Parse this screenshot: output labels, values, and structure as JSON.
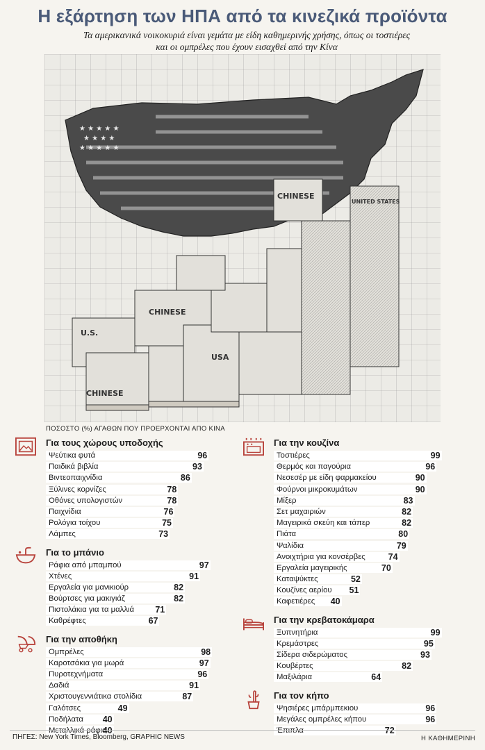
{
  "header": {
    "title": "Η εξάρτηση των ΗΠΑ από τα κινεζικά προϊόντα",
    "subtitle_line1": "Τα αμερικανικά νοικοκυριά είναι γεμάτα με είδη καθημερινής χρήσης, όπως οι τοστιέρες",
    "subtitle_line2": "και οι ομπρέλες που έχουν εισαχθεί από την Κίνα"
  },
  "illustration": {
    "box_labels": [
      "CHINESE",
      "CHINESE",
      "CHINESE",
      "UNITED STATES",
      "USA",
      "U.S."
    ]
  },
  "colors": {
    "title": "#4a5a78",
    "icon": "#b8433c",
    "bar": "#ffffff",
    "background": "#f6f4ef"
  },
  "chart_data": {
    "type": "bar",
    "axis_label": "ΠΟΣΟΣΤΟ (%) ΑΓΑΘΩΝ ΠΟΥ ΠΡΟΕΡΧΟΝΤΑΙ ΑΠΟ ΚΙΝΑ",
    "xlim": [
      0,
      100
    ],
    "groups": [
      {
        "name": "Για τους χώρους υποδοχής",
        "icon": "picture-frame-icon",
        "column": "left",
        "categories": [
          "Ψεύτικα φυτά",
          "Παιδικά βιβλία",
          "Βιντεοπαιχνίδια",
          "Ξύλινες κορνίζες",
          "Οθόνες υπολογιστών",
          "Παιχνίδια",
          "Ρολόγια τοίχου",
          "Λάμπες"
        ],
        "values": [
          96,
          93,
          86,
          78,
          78,
          76,
          75,
          73
        ]
      },
      {
        "name": "Για το μπάνιο",
        "icon": "sink-icon",
        "column": "left",
        "categories": [
          "Ράφια από μπαμπού",
          "Χτένες",
          "Εργαλεία για μανικιούρ",
          "Βούρτσες για μακιγιάζ",
          "Πιστολάκια για τα μαλλιά",
          "Καθρέφτες"
        ],
        "values": [
          97,
          91,
          82,
          82,
          71,
          67
        ]
      },
      {
        "name": "Για την αποθήκη",
        "icon": "stroller-icon",
        "column": "left",
        "categories": [
          "Ομπρέλες",
          "Καροτσάκια για μωρά",
          "Πυροτεχνήματα",
          "Δαδιά",
          "Χριστουγεννιάτικα στολίδια",
          "Γαλότσες",
          "Ποδήλατα",
          "Μεταλλικά ράφια"
        ],
        "values": [
          98,
          97,
          96,
          91,
          87,
          49,
          40,
          40
        ]
      },
      {
        "name": "Για την κουζίνα",
        "icon": "stove-icon",
        "column": "right",
        "categories": [
          "Τοστιέρες",
          "Θερμός και παγούρια",
          "Νεσεσέρ με είδη φαρμακείου",
          "Φούρνοι μικροκυμάτων",
          "Μίξερ",
          "Σετ μαχαιριών",
          "Μαγειρικά σκεύη και τάπερ",
          "Πιάτα",
          "Ψαλίδια",
          "Ανοιχτήρια για κονσέρβες",
          "Εργαλεία μαγειρικής",
          "Καταψύκτες",
          "Κουζίνες αερίου",
          "Καφετιέρες"
        ],
        "values": [
          99,
          96,
          90,
          90,
          83,
          82,
          82,
          80,
          79,
          74,
          70,
          52,
          51,
          40
        ]
      },
      {
        "name": "Για την κρεβατοκάμαρα",
        "icon": "bed-icon",
        "column": "right",
        "categories": [
          "Ξυπνητήρια",
          "Κρεμάστρες",
          "Σίδερα σιδερώματος",
          "Κουβέρτες",
          "Μαξιλάρια"
        ],
        "values": [
          99,
          95,
          93,
          82,
          64
        ]
      },
      {
        "name": "Για τον κήπο",
        "icon": "cactus-pot-icon",
        "column": "right",
        "categories": [
          "Ψησιέρες μπάρμπεκιου",
          "Μεγάλες ομπρέλες κήπου",
          "Έπιπλα"
        ],
        "values": [
          96,
          96,
          72
        ]
      }
    ]
  },
  "footer": {
    "sources": "ΠΗΓΕΣ: New York Times, Bloomberg, GRAPHIC NEWS",
    "brand": "Η ΚΑΘΗΜΕΡΙΝΗ"
  }
}
